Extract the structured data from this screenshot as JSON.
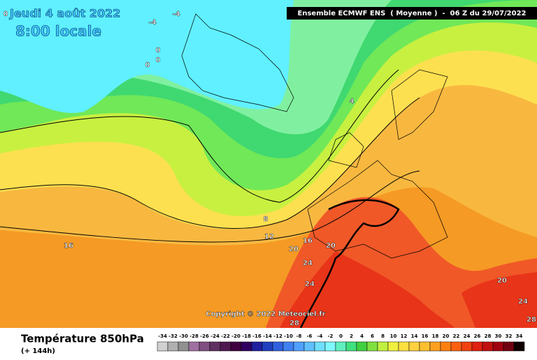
{
  "header": {
    "date": "Jeudi 4 août 2022",
    "time": "8:00 locale",
    "run": "Ensemble ECMWF ENS  ( Moyenne )  -  06 Z du 29/07/2022"
  },
  "map": {
    "copyright": "Copyright © 2022 Meteociel.fr",
    "contour_labels": [
      0,
      -4,
      -4,
      0,
      0,
      0,
      4,
      8,
      12,
      16,
      16,
      20,
      20,
      24,
      24,
      20,
      24,
      28,
      28
    ]
  },
  "footer": {
    "title": "Température 850hPa",
    "subtitle": "(+ 144h)"
  },
  "scale": {
    "labels": [
      -34,
      -32,
      -30,
      -28,
      -26,
      -24,
      -22,
      -20,
      -18,
      -16,
      -14,
      -12,
      -10,
      -8,
      -6,
      -4,
      -2,
      0,
      2,
      4,
      6,
      8,
      10,
      12,
      14,
      16,
      18,
      20,
      22,
      24,
      26,
      28,
      30,
      32,
      34
    ],
    "colors": [
      "#d0d0d0",
      "#b0b0b0",
      "#909090",
      "#a070a0",
      "#805080",
      "#603060",
      "#501850",
      "#400040",
      "#300060",
      "#2020a0",
      "#2040c0",
      "#3060e0",
      "#4080f0",
      "#50a0ff",
      "#60c0ff",
      "#70e0ff",
      "#80f8ff",
      "#60f0c0",
      "#40e080",
      "#40d040",
      "#80e040",
      "#c0f040",
      "#f0f040",
      "#ffe040",
      "#ffd040",
      "#ffc030",
      "#ffa020",
      "#ff8010",
      "#ff6010",
      "#f04010",
      "#e02010",
      "#c01010",
      "#a00010",
      "#700010",
      "#100000"
    ]
  }
}
